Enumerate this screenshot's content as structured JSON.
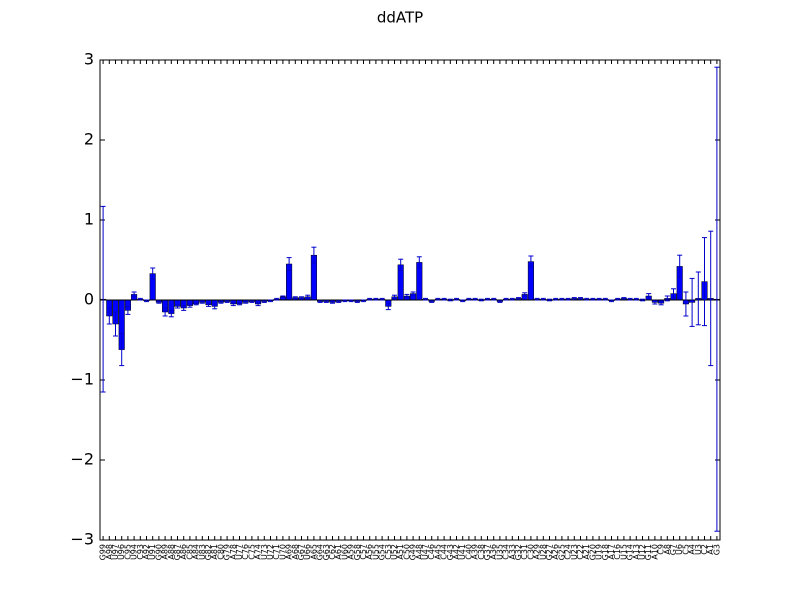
{
  "chart_data": {
    "type": "bar",
    "title": "ddATP",
    "categories": [
      "G99",
      "A98",
      "U97",
      "U96",
      "C95",
      "U94",
      "C93",
      "A92",
      "U91",
      "G90",
      "A89",
      "A88",
      "G87",
      "A86",
      "C85",
      "A84",
      "U83",
      "G82",
      "A81",
      "C80",
      "G79",
      "A78",
      "U77",
      "C76",
      "C75",
      "A74",
      "U73",
      "U72",
      "C71",
      "U70",
      "A69",
      "A68",
      "G67",
      "U66",
      "A65",
      "G64",
      "G63",
      "C62",
      "A61",
      "U60",
      "A59",
      "G58",
      "C57",
      "A56",
      "U55",
      "G54",
      "C53",
      "U52",
      "A51",
      "C50",
      "G49",
      "A48",
      "U47",
      "C46",
      "A45",
      "C44",
      "G43",
      "A42",
      "U41",
      "C40",
      "A39",
      "C38",
      "G37",
      "A36",
      "U35",
      "C34",
      "A33",
      "G32",
      "C31",
      "C30",
      "A29",
      "U28",
      "G27",
      "A26",
      "G25",
      "C24",
      "U23",
      "C22",
      "A21",
      "G20",
      "U19",
      "G18",
      "A17",
      "C16",
      "U15",
      "G14",
      "A13",
      "U12",
      "G11",
      "A10",
      "C9",
      "A8",
      "G7",
      "U6",
      "C5",
      "A4",
      "U3",
      "C2",
      "A1",
      "G3"
    ],
    "values": [
      0.01,
      -0.2,
      -0.3,
      -0.62,
      -0.13,
      0.07,
      0.01,
      -0.01,
      0.33,
      -0.03,
      -0.15,
      -0.17,
      -0.08,
      -0.1,
      -0.07,
      -0.05,
      -0.03,
      -0.06,
      -0.08,
      -0.03,
      -0.02,
      -0.05,
      -0.05,
      -0.03,
      -0.02,
      -0.05,
      -0.02,
      -0.01,
      0.01,
      0.04,
      0.45,
      0.03,
      0.03,
      0.04,
      0.56,
      -0.02,
      -0.02,
      -0.03,
      -0.02,
      -0.01,
      -0.01,
      -0.02,
      -0.01,
      0.01,
      0.01,
      0.01,
      -0.08,
      0.04,
      0.44,
      0.05,
      0.08,
      0.47,
      0.01,
      -0.02,
      0.01,
      0.01,
      0.0,
      0.01,
      -0.01,
      0.01,
      0.01,
      0.0,
      0.01,
      0.01,
      -0.02,
      0.01,
      0.01,
      0.02,
      0.07,
      0.48,
      0.01,
      0.01,
      0.0,
      0.01,
      0.01,
      0.01,
      0.02,
      0.02,
      0.01,
      0.01,
      0.01,
      0.01,
      -0.01,
      0.01,
      0.02,
      0.01,
      0.01,
      0.0,
      0.05,
      -0.03,
      -0.04,
      0.02,
      0.08,
      0.42,
      -0.05,
      -0.03,
      0.02,
      0.23,
      0.02,
      0.01
    ],
    "errors": [
      1.16,
      0.1,
      0.15,
      0.2,
      0.05,
      0.03,
      0.01,
      0.01,
      0.07,
      0.01,
      0.05,
      0.04,
      0.02,
      0.03,
      0.02,
      0.01,
      0.01,
      0.02,
      0.03,
      0.01,
      0.01,
      0.02,
      0.01,
      0.01,
      0.01,
      0.02,
      0.01,
      0.01,
      0.01,
      0.01,
      0.08,
      0.01,
      0.01,
      0.02,
      0.1,
      0.01,
      0.01,
      0.01,
      0.01,
      0.01,
      0.01,
      0.01,
      0.01,
      0.01,
      0.01,
      0.01,
      0.04,
      0.02,
      0.07,
      0.02,
      0.02,
      0.07,
      0.01,
      0.01,
      0.01,
      0.01,
      0.01,
      0.01,
      0.01,
      0.01,
      0.01,
      0.01,
      0.01,
      0.01,
      0.01,
      0.01,
      0.01,
      0.01,
      0.02,
      0.07,
      0.01,
      0.01,
      0.01,
      0.01,
      0.01,
      0.01,
      0.01,
      0.01,
      0.01,
      0.01,
      0.01,
      0.01,
      0.01,
      0.01,
      0.01,
      0.01,
      0.01,
      0.01,
      0.03,
      0.02,
      0.02,
      0.03,
      0.06,
      0.14,
      0.15,
      0.3,
      0.33,
      0.55,
      0.84,
      2.9
    ],
    "color": "#0000ff",
    "error_color": "#0000cc",
    "ylim": [
      -3,
      3
    ],
    "yticks": [
      {
        "value": -3,
        "label": "−3"
      },
      {
        "value": -2,
        "label": "−2"
      },
      {
        "value": -1,
        "label": "−1"
      },
      0,
      1,
      2,
      3
    ],
    "grid": false
  }
}
